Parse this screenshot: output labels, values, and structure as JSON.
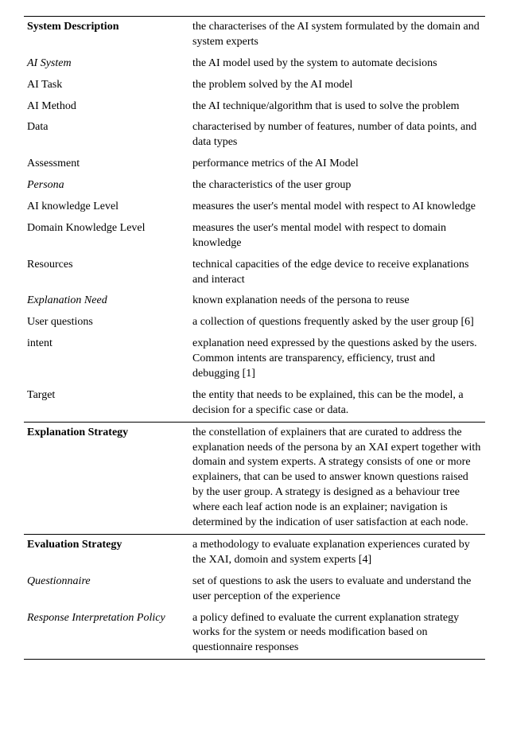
{
  "rows": [
    {
      "term": "System Description",
      "desc": "the characterises of the AI system formulated by the domain and system experts",
      "style": "bold",
      "indent": "indent0",
      "topRule": true
    },
    {
      "term": "AI System",
      "desc": "the AI model used by the system to automate decisions",
      "style": "italic",
      "indent": "indent1"
    },
    {
      "term": "AI Task",
      "desc": "the problem solved by the AI model",
      "style": "",
      "indent": "indent1"
    },
    {
      "term": "AI Method",
      "desc": "the AI technique/algorithm that is used to solve the problem",
      "style": "",
      "indent": "indent1"
    },
    {
      "term": "Data",
      "desc": "characterised by number of features, number of data points, and data types",
      "style": "",
      "indent": "indent1"
    },
    {
      "term": "Assessment",
      "desc": "performance metrics of the AI Model",
      "style": "",
      "indent": "indent1"
    },
    {
      "term": "Persona",
      "desc": "the characteristics of the user group",
      "style": "italic",
      "indent": "indent0"
    },
    {
      "term": "AI knowledge Level",
      "desc": "measures the user's mental model with respect to AI knowledge",
      "style": "",
      "indent": "indent1"
    },
    {
      "term": "Domain Knowledge Level",
      "desc": "measures the user's mental model with respect to domain knowledge",
      "style": "",
      "indent": "indent1"
    },
    {
      "term": "Resources",
      "desc": "technical capacities of the edge device to receive explanations and interact",
      "style": "",
      "indent": "indent1"
    },
    {
      "term": "Explanation Need",
      "desc": "known explanation needs of the persona to reuse",
      "style": "italic",
      "indent": "indent0"
    },
    {
      "term": "User questions",
      "desc": "a collection of questions frequently asked by the user group [6]",
      "style": "",
      "indent": "indent1"
    },
    {
      "term": "intent",
      "desc": "explanation need expressed by the questions asked by the users. Common intents are transparency, efficiency, trust and debugging [1]",
      "style": "",
      "indent": "indent1"
    },
    {
      "term": "Target",
      "desc": "the entity that needs to be explained, this can be the model, a decision for a specific case or data.",
      "style": "",
      "indent": "indent1"
    },
    {
      "term": "Explanation Strategy",
      "desc": "the constellation of explainers that are curated to address the explanation needs of the persona by an XAI expert together with domain and system experts. A strategy consists of one or more explainers, that can be used to answer known questions raised by the user group. A strategy is designed as a behaviour tree where each leaf action node is an explainer; navigation is determined by the indication of user satisfaction at each node.",
      "style": "bold",
      "indent": "indent0",
      "topRule": true
    },
    {
      "term": "Evaluation Strategy",
      "desc": "a methodology to evaluate explanation experiences curated by the XAI, domoin and system experts [4]",
      "style": "bold",
      "indent": "indent0",
      "topRule": true
    },
    {
      "term": "Questionnaire",
      "desc": "set of questions to ask the users to evaluate and understand the user perception of the experience",
      "style": "italic",
      "indent": "indent1"
    },
    {
      "term": "Response Interpretation Policy",
      "desc": "a policy defined to evaluate the current explanation strategy works for the system or needs modification based on questionnaire responses",
      "style": "italic",
      "indent": "indent0",
      "bottomRule": true
    }
  ]
}
